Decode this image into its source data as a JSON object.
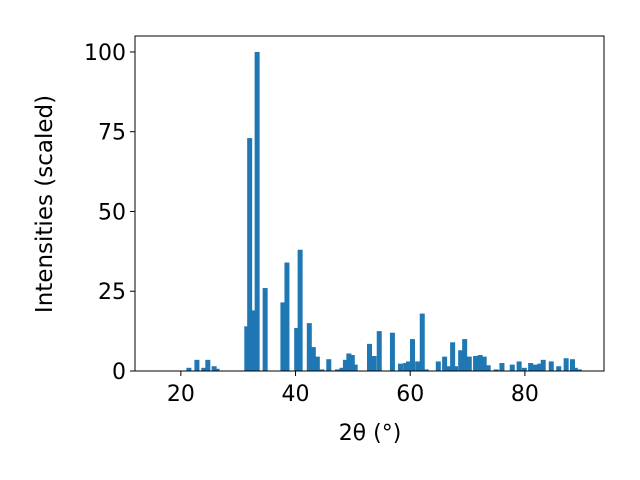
{
  "chart_data": {
    "type": "bar",
    "x_label": "2θ (°)",
    "y_label": "Intensities (scaled)",
    "color": "#1f77b4",
    "x": [
      21.4,
      22.8,
      24.0,
      24.7,
      25.8,
      26.3,
      31.5,
      32.0,
      32.6,
      33.3,
      34.7,
      37.8,
      38.5,
      40.2,
      40.8,
      42.4,
      43.1,
      43.8,
      44.6,
      45.8,
      47.3,
      48.1,
      48.7,
      49.3,
      49.9,
      50.4,
      52.9,
      53.7,
      54.6,
      56.9,
      58.3,
      59.2,
      59.7,
      60.4,
      61.3,
      62.1,
      62.8,
      64.9,
      66.0,
      66.8,
      67.4,
      67.9,
      68.8,
      69.5,
      70.3,
      71.4,
      72.2,
      72.9,
      73.6,
      75.0,
      76.0,
      77.8,
      79.0,
      79.9,
      81.0,
      81.8,
      82.6,
      83.2,
      84.6,
      85.9,
      87.2,
      88.3,
      88.8,
      89.5
    ],
    "values": [
      1,
      3.5,
      1,
      3.5,
      1.5,
      0.7,
      14,
      73,
      19,
      100,
      26,
      21.5,
      34,
      13.5,
      38,
      15,
      7.5,
      4.5,
      0.5,
      3.7,
      0.5,
      1,
      3.5,
      5.5,
      5,
      2,
      8.5,
      4.7,
      12.5,
      12,
      2.3,
      2.5,
      3,
      10,
      3,
      18,
      0.5,
      3,
      4.5,
      1.5,
      9,
      1.5,
      6.5,
      10,
      4.5,
      4.7,
      5,
      4.5,
      1.8,
      0.5,
      2.5,
      2,
      3,
      1,
      2.5,
      2,
      2.3,
      3.5,
      3,
      1.5,
      4,
      3.7,
      1,
      0.5
    ],
    "xlim": [
      12,
      93.8
    ],
    "ylim": [
      0,
      105
    ],
    "xticks": [
      20,
      40,
      60,
      80
    ],
    "yticks": [
      0,
      25,
      50,
      75,
      100
    ]
  }
}
